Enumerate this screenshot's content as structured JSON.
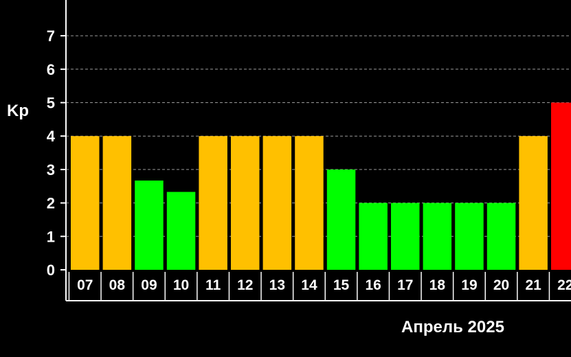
{
  "chart_data": {
    "type": "bar",
    "ylabel": "Kp",
    "xlabel": "Апрель 2025",
    "ylim": [
      0,
      7.5
    ],
    "yticks": [
      "0",
      "1",
      "2",
      "3",
      "4",
      "5",
      "6",
      "7"
    ],
    "grid": true,
    "categories": [
      "07",
      "08",
      "09",
      "10",
      "11",
      "12",
      "13",
      "14",
      "15",
      "16",
      "17",
      "18",
      "19",
      "20",
      "21",
      "22"
    ],
    "values": [
      4,
      4,
      2.67,
      2.33,
      4,
      4,
      4,
      4,
      3,
      2,
      2,
      2,
      2,
      2,
      4,
      5
    ],
    "colors": {
      "below_4": "#00ff00",
      "equal_4": "#ffc000",
      "from_5": "#ff0000",
      "background": "#000000",
      "axis": "#ffffff"
    }
  }
}
